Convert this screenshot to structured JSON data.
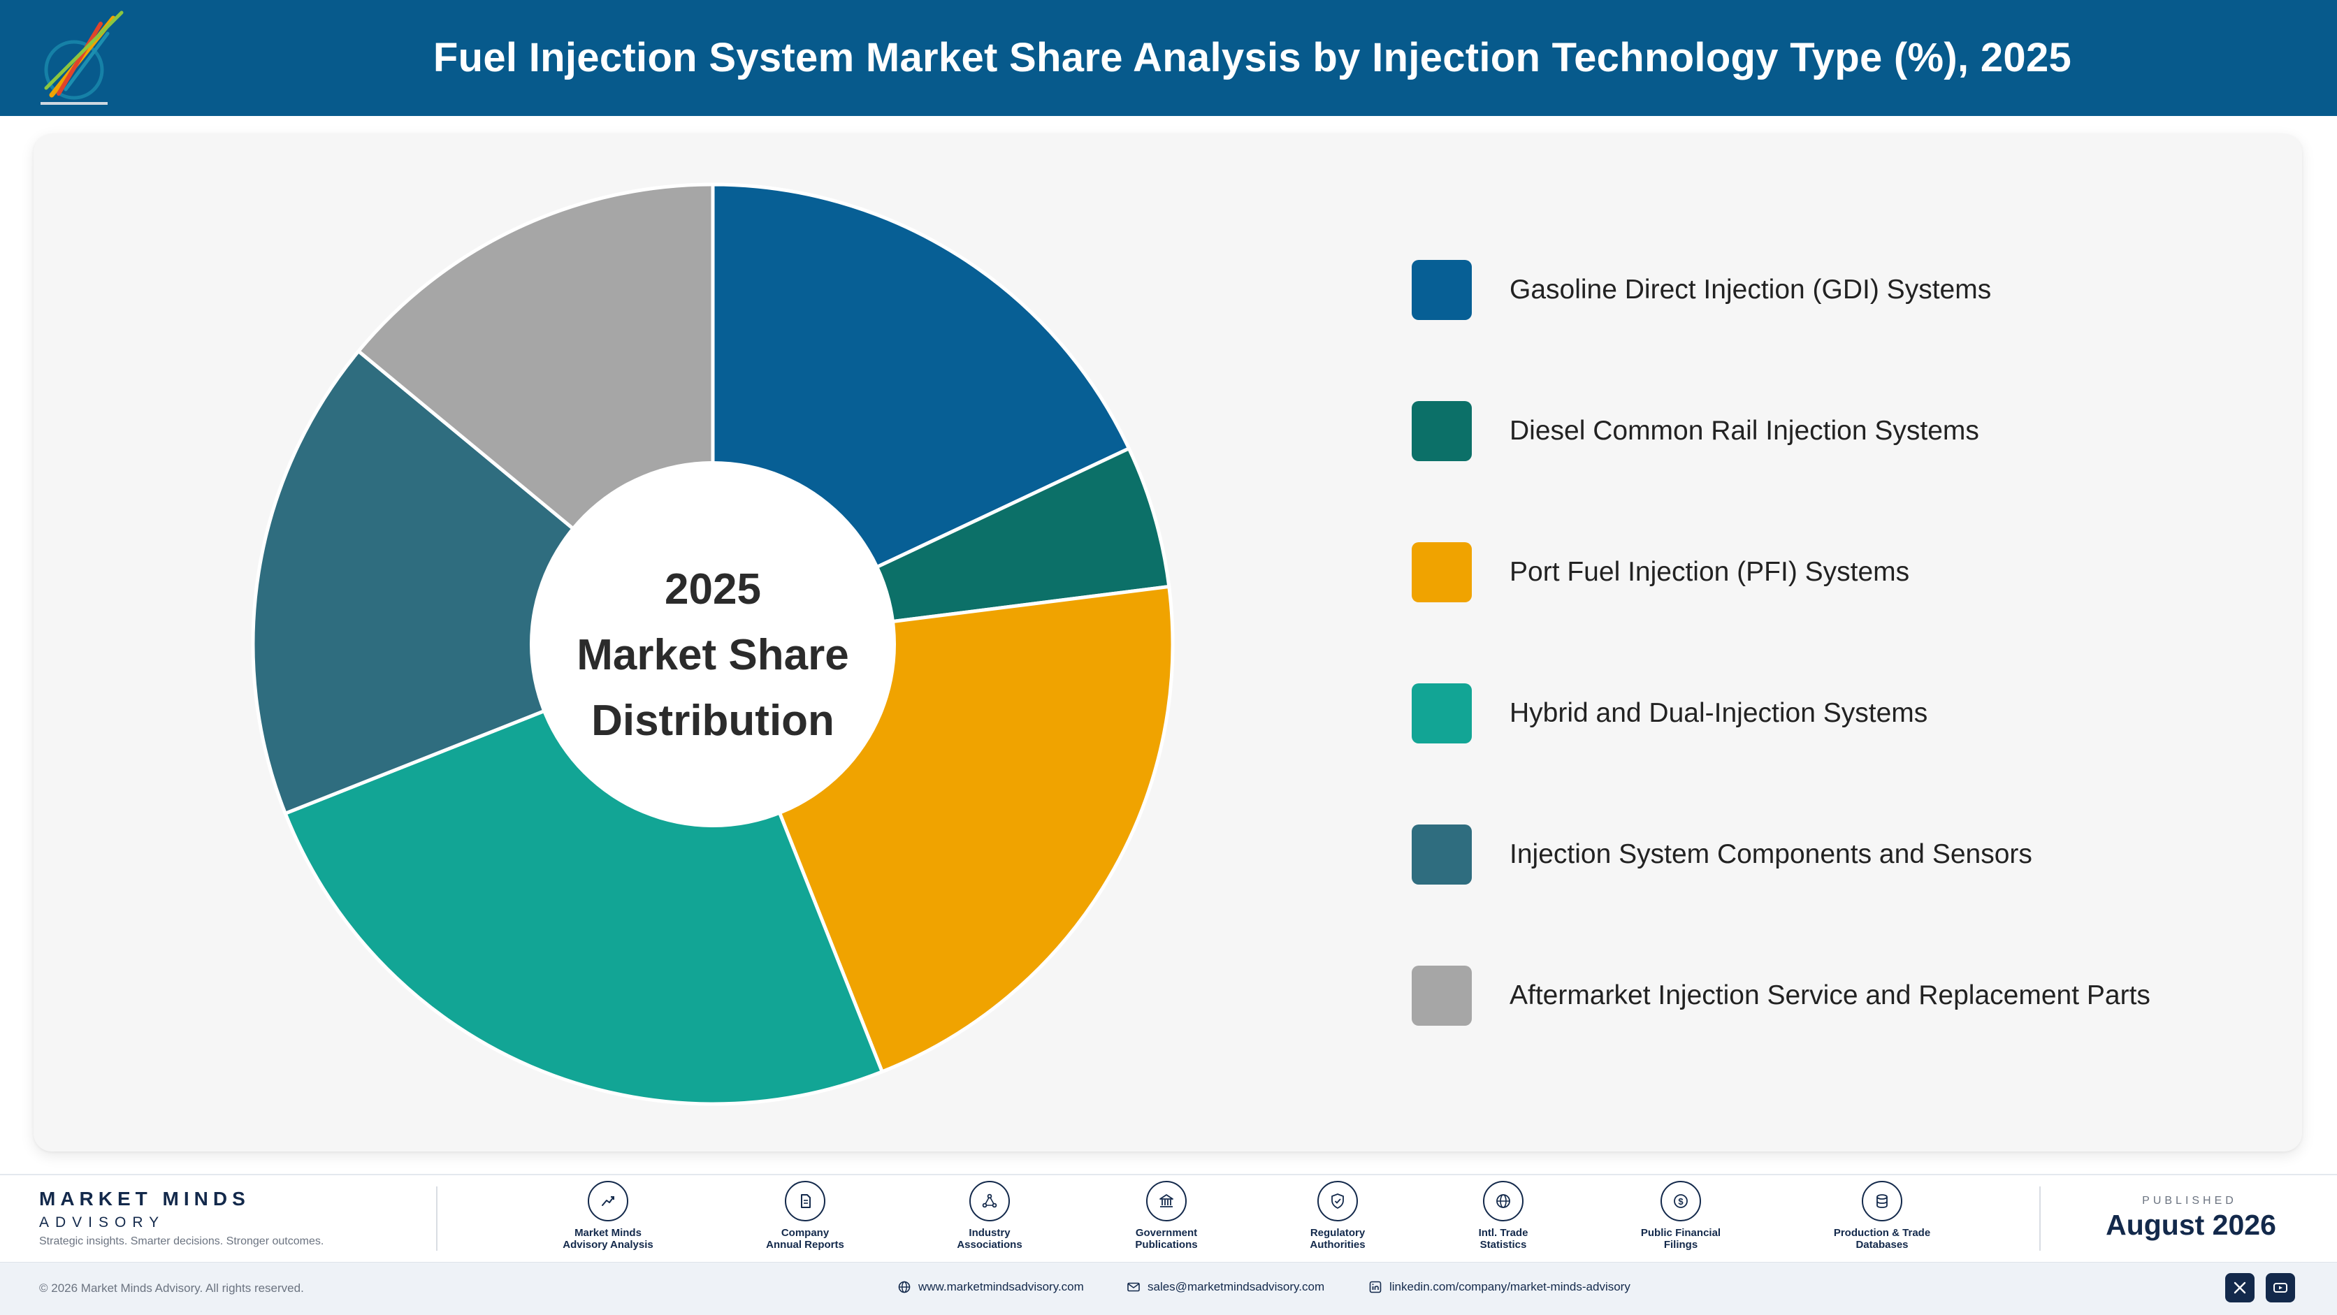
{
  "header": {
    "title": "Fuel Injection System Market Share Analysis by Injection Technology Type (%), 2025"
  },
  "chart_data": {
    "type": "pie",
    "style": "donut",
    "center_text": [
      "2025",
      "Market Share",
      "Distribution"
    ],
    "categories": [
      "Gasoline Direct Injection (GDI) Systems",
      "Diesel Common Rail Injection Systems",
      "Port Fuel Injection (PFI) Systems",
      "Hybrid and Dual-Injection Systems",
      "Injection System Components and Sensors",
      "Aftermarket Injection Service and Replacement Parts"
    ],
    "values": [
      18,
      5,
      21,
      25,
      17,
      14
    ],
    "colors": [
      "#075f95",
      "#0c7068",
      "#f0a300",
      "#12a595",
      "#2f6d7f",
      "#a6a6a6"
    ],
    "legend_position": "right",
    "start_angle": "top",
    "direction": "clockwise"
  },
  "footer": {
    "brand_name": "MARKET MINDS",
    "brand_sub": "ADVISORY",
    "brand_tagline": "Strategic insights. Smarter decisions. Stronger outcomes.",
    "sources": [
      {
        "icon": "trend-chart-icon",
        "label": [
          "Market Minds",
          "Advisory Analysis"
        ]
      },
      {
        "icon": "document-icon",
        "label": [
          "Company",
          "Annual Reports"
        ]
      },
      {
        "icon": "network-icon",
        "label": [
          "Industry",
          "Associations"
        ]
      },
      {
        "icon": "government-building-icon",
        "label": [
          "Government",
          "Publications"
        ]
      },
      {
        "icon": "shield-check-icon",
        "label": [
          "Regulatory",
          "Authorities"
        ]
      },
      {
        "icon": "globe-icon",
        "label": [
          "Intl. Trade",
          "Statistics"
        ]
      },
      {
        "icon": "dollar-coin-icon",
        "label": [
          "Public Financial",
          "Filings"
        ]
      },
      {
        "icon": "database-icon",
        "label": [
          "Production & Trade",
          "Databases"
        ]
      }
    ],
    "published_label": "PUBLISHED",
    "published_date": "August 2026",
    "copyright": "© 2026 Market Minds Advisory. All rights reserved.",
    "website": "www.marketmindsadvisory.com",
    "email": "sales@marketmindsadvisory.com",
    "linkedin": "linkedin.com/company/market-minds-advisory"
  }
}
